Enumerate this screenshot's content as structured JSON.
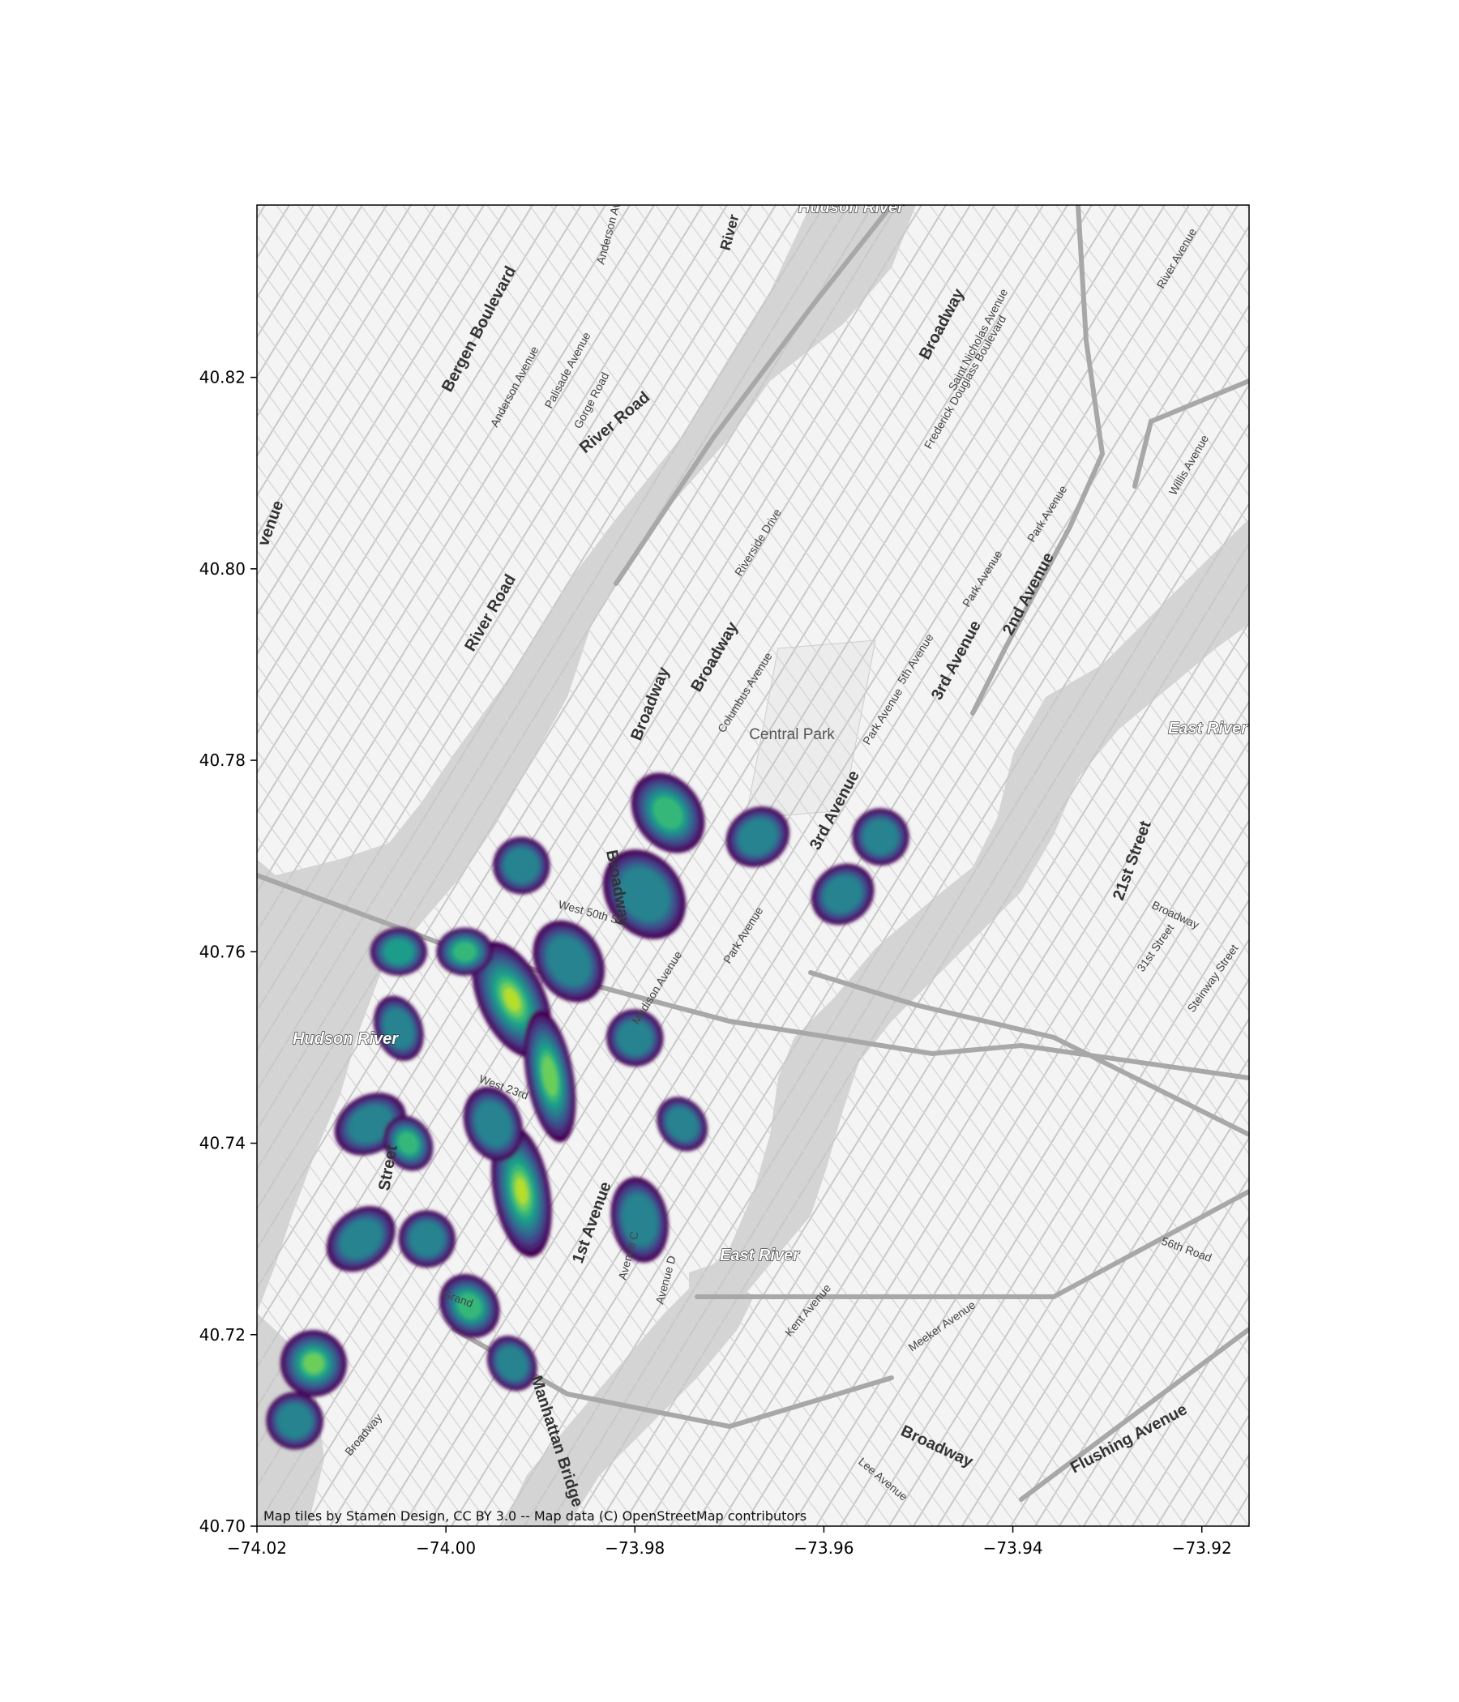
{
  "chart_data": {
    "type": "heatmap",
    "subtype": "kde-density-over-basemap",
    "colormap": "viridis",
    "xlim": [
      -74.02,
      -73.915
    ],
    "ylim": [
      40.7,
      40.838
    ],
    "x_ticks": [
      -74.02,
      -74.0,
      -73.98,
      -73.96,
      -73.94,
      -73.92
    ],
    "x_tick_labels": [
      "−74.02",
      "−74.00",
      "−73.98",
      "−73.96",
      "−73.94",
      "−73.92"
    ],
    "y_ticks": [
      40.7,
      40.72,
      40.74,
      40.76,
      40.78,
      40.8,
      40.82
    ],
    "y_tick_labels": [
      "40.70",
      "40.72",
      "40.74",
      "40.76",
      "40.78",
      "40.80",
      "40.82"
    ],
    "hotspots": [
      {
        "lon": -73.9765,
        "lat": 40.7745,
        "w": 0.0035,
        "h": 0.0045,
        "intensity": 0.75,
        "angle": 35
      },
      {
        "lon": -73.979,
        "lat": 40.766,
        "w": 0.004,
        "h": 0.005,
        "intensity": 0.55,
        "angle": 35
      },
      {
        "lon": -73.967,
        "lat": 40.772,
        "w": 0.0035,
        "h": 0.003,
        "intensity": 0.6,
        "angle": 35
      },
      {
        "lon": -73.954,
        "lat": 40.772,
        "w": 0.003,
        "h": 0.003,
        "intensity": 0.5,
        "angle": 40
      },
      {
        "lon": -73.958,
        "lat": 40.766,
        "w": 0.0035,
        "h": 0.003,
        "intensity": 0.55,
        "angle": 40
      },
      {
        "lon": -73.992,
        "lat": 40.769,
        "w": 0.003,
        "h": 0.003,
        "intensity": 0.5,
        "angle": 30
      },
      {
        "lon": -73.987,
        "lat": 40.759,
        "w": 0.0035,
        "h": 0.0045,
        "intensity": 0.55,
        "angle": 30
      },
      {
        "lon": -73.993,
        "lat": 40.755,
        "w": 0.0035,
        "h": 0.0065,
        "intensity": 0.95,
        "angle": 25
      },
      {
        "lon": -73.989,
        "lat": 40.747,
        "w": 0.0025,
        "h": 0.007,
        "intensity": 0.9,
        "angle": 10
      },
      {
        "lon": -73.992,
        "lat": 40.735,
        "w": 0.003,
        "h": 0.007,
        "intensity": 1.0,
        "angle": 10
      },
      {
        "lon": -73.995,
        "lat": 40.742,
        "w": 0.003,
        "h": 0.004,
        "intensity": 0.55,
        "angle": 20
      },
      {
        "lon": -73.998,
        "lat": 40.76,
        "w": 0.003,
        "h": 0.0025,
        "intensity": 0.75,
        "angle": 0
      },
      {
        "lon": -74.005,
        "lat": 40.76,
        "w": 0.003,
        "h": 0.0025,
        "intensity": 0.7,
        "angle": 0
      },
      {
        "lon": -74.005,
        "lat": 40.752,
        "w": 0.0025,
        "h": 0.0035,
        "intensity": 0.55,
        "angle": 20
      },
      {
        "lon": -74.008,
        "lat": 40.742,
        "w": 0.004,
        "h": 0.003,
        "intensity": 0.55,
        "angle": 30
      },
      {
        "lon": -74.004,
        "lat": 40.74,
        "w": 0.0025,
        "h": 0.003,
        "intensity": 0.8,
        "angle": 30
      },
      {
        "lon": -74.009,
        "lat": 40.73,
        "w": 0.004,
        "h": 0.003,
        "intensity": 0.5,
        "angle": 40
      },
      {
        "lon": -74.002,
        "lat": 40.73,
        "w": 0.003,
        "h": 0.003,
        "intensity": 0.55,
        "angle": 30
      },
      {
        "lon": -73.9975,
        "lat": 40.723,
        "w": 0.003,
        "h": 0.0035,
        "intensity": 0.75,
        "angle": 35
      },
      {
        "lon": -73.993,
        "lat": 40.717,
        "w": 0.0025,
        "h": 0.003,
        "intensity": 0.55,
        "angle": 30
      },
      {
        "lon": -73.9795,
        "lat": 40.732,
        "w": 0.003,
        "h": 0.0045,
        "intensity": 0.55,
        "angle": 10
      },
      {
        "lon": -73.98,
        "lat": 40.751,
        "w": 0.003,
        "h": 0.003,
        "intensity": 0.5,
        "angle": 35
      },
      {
        "lon": -73.975,
        "lat": 40.742,
        "w": 0.0025,
        "h": 0.003,
        "intensity": 0.5,
        "angle": 35
      },
      {
        "lon": -74.014,
        "lat": 40.717,
        "w": 0.0035,
        "h": 0.0035,
        "intensity": 0.85,
        "angle": 40
      },
      {
        "lon": -74.016,
        "lat": 40.711,
        "w": 0.003,
        "h": 0.003,
        "intensity": 0.55,
        "angle": 40
      }
    ]
  },
  "map": {
    "water_labels": [
      "Hudson River",
      "Hudson River",
      "East River",
      "East River"
    ],
    "park_labels": [
      "Central Park"
    ],
    "street_labels": [
      "Bergen Boulevard",
      "Anderson Avenue",
      "Palisade Avenue",
      "Gorge Road",
      "River Road",
      "River Road",
      "Anderson Avenue",
      "River",
      "Broadway",
      "Saint Nicholas Avenue",
      "Frederick Douglass Boulevard",
      "River Avenue",
      "Willis Avenue",
      "Riverside Drive",
      "Broadway",
      "Broadway",
      "Columbus Avenue",
      "Park Avenue",
      "5th Avenue",
      "Park Avenue",
      "Park Avenue",
      "3rd Avenue",
      "2nd Avenue",
      "Broadway",
      "3rd Avenue",
      "21st Street",
      "Broadway",
      "31st Street",
      "Steinway Street",
      "Madison Avenue",
      "Park Avenue",
      "1st Avenue",
      "Avenue C",
      "Avenue D",
      "Kent Avenue",
      "Meeker Avenue",
      "56th Road",
      "Broadway",
      "Lee Avenue",
      "Flushing Avenue",
      "Manhattan Bridge",
      "Broadway",
      "Street",
      "West 23rd",
      "West 50th St",
      "venue",
      "Grand"
    ]
  },
  "attribution": "Map tiles by Stamen Design, CC BY 3.0 -- Map data (C) OpenStreetMap contributors"
}
